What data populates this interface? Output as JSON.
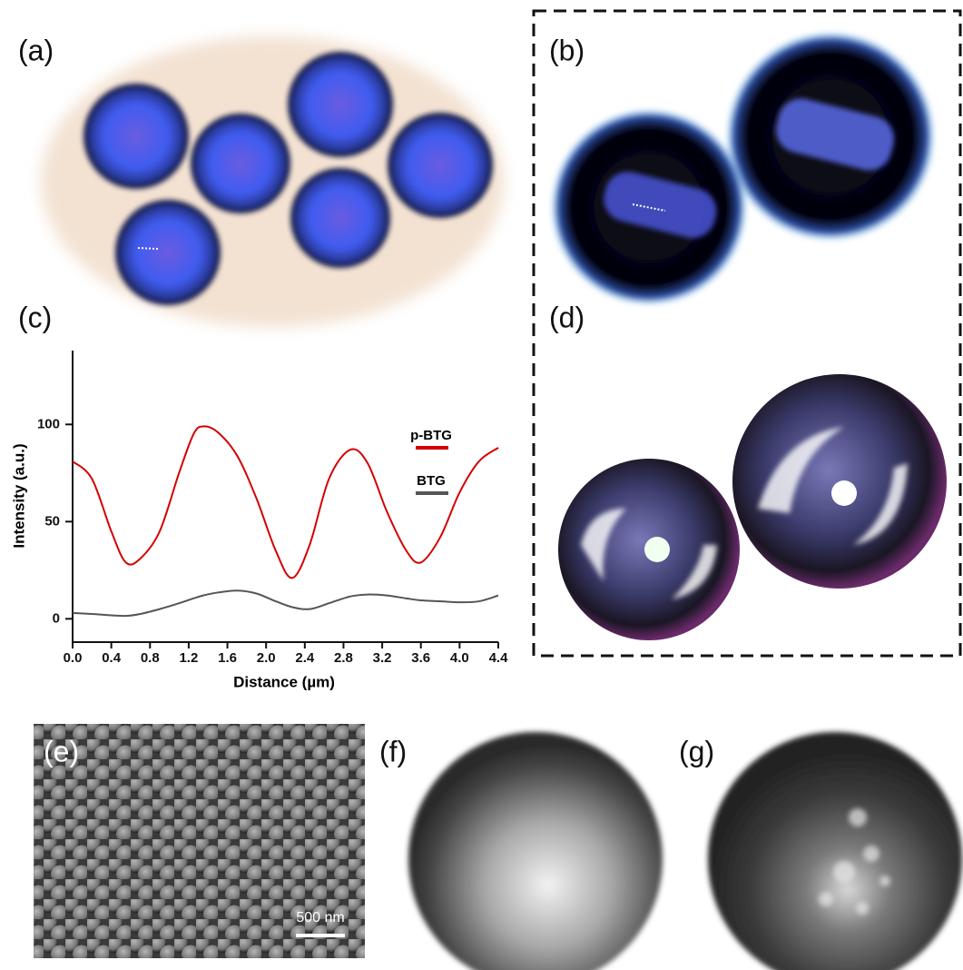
{
  "chart_data": {
    "type": "line",
    "xlabel": "Distance (µm)",
    "ylabel": "Intensity (a.u.)",
    "x": [
      0,
      0.2,
      0.4,
      0.55,
      0.7,
      0.9,
      1.1,
      1.25,
      1.35,
      1.5,
      1.7,
      1.9,
      2.1,
      2.27,
      2.45,
      2.65,
      2.87,
      3.05,
      3.25,
      3.45,
      3.6,
      3.8,
      4.0,
      4.2,
      4.4
    ],
    "series": [
      {
        "name": "p-BTG",
        "color": "#d40000",
        "values": [
          81,
          72,
          45,
          29,
          31,
          45,
          75,
          95,
          99,
          96,
          84,
          62,
          35,
          21,
          38,
          72,
          87,
          80,
          55,
          35,
          29,
          42,
          65,
          81,
          88
        ]
      },
      {
        "name": "BTG",
        "color": "#555555",
        "values": [
          3,
          2.5,
          1.8,
          1.5,
          2.5,
          5,
          8,
          10.5,
          12,
          13.5,
          14.5,
          13,
          9,
          6,
          5,
          8,
          11.5,
          12.5,
          12,
          10.5,
          9.5,
          9,
          8.5,
          9,
          12
        ]
      }
    ],
    "xlim": [
      0,
      4.4
    ],
    "xticks": [
      {
        "value": 0,
        "label": "0.0"
      },
      0.4,
      0.8,
      1.2,
      1.6,
      {
        "value": 2,
        "label": "2.0"
      },
      2.4,
      2.8,
      3.2,
      3.6,
      {
        "value": 4,
        "label": "4.0"
      },
      4.4
    ],
    "ylim": [
      -12,
      138
    ],
    "yticks": [
      0,
      50,
      100
    ],
    "legend": "upper-right",
    "grid": false
  },
  "panels": {
    "labels": [
      "(a)",
      "(b)",
      "(c)",
      "(d)",
      "(e)",
      "(f)",
      "(g)"
    ],
    "scale_bar": "500 nm"
  }
}
